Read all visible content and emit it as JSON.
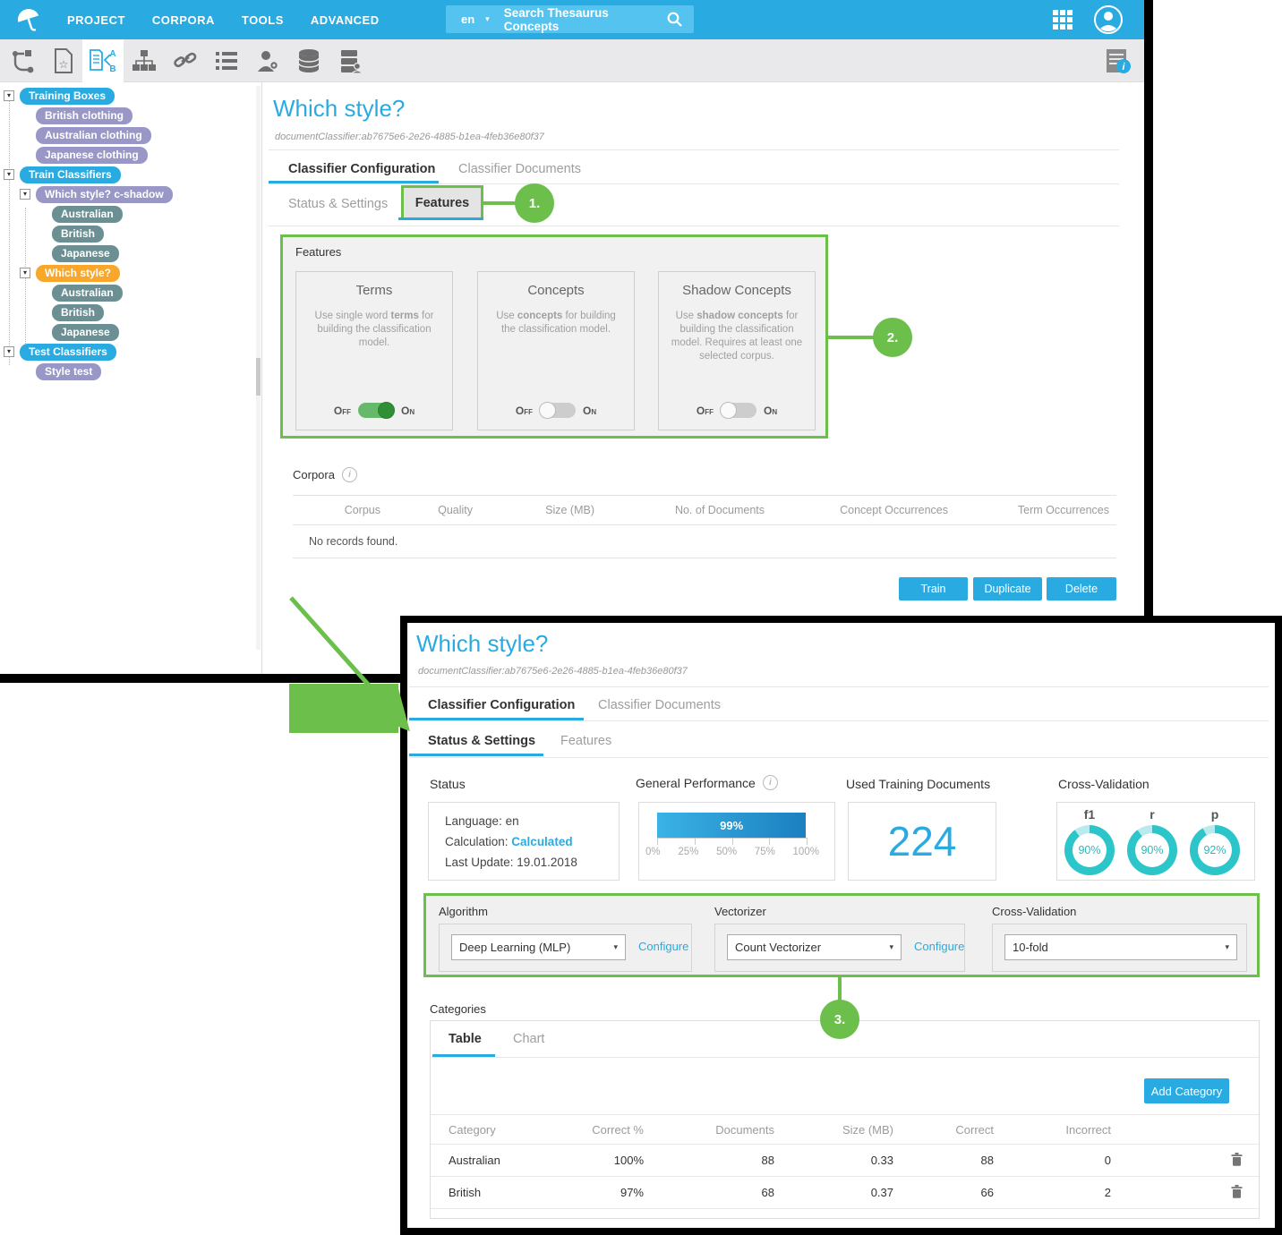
{
  "header": {
    "menus": [
      "PROJECT",
      "CORPORA",
      "TOOLS",
      "ADVANCED"
    ],
    "search": {
      "lang": "en",
      "placeholder": "Search Thesaurus Concepts"
    }
  },
  "tree": {
    "items": [
      {
        "label": "Training Boxes"
      },
      {
        "label": "British clothing"
      },
      {
        "label": "Australian clothing"
      },
      {
        "label": "Japanese clothing"
      },
      {
        "label": "Train Classifiers"
      },
      {
        "label": "Which style? c-shadow"
      },
      {
        "label": "Australian"
      },
      {
        "label": "British"
      },
      {
        "label": "Japanese"
      },
      {
        "label": "Which style?"
      },
      {
        "label": "Australian"
      },
      {
        "label": "British"
      },
      {
        "label": "Japanese"
      },
      {
        "label": "Test Classifiers"
      },
      {
        "label": "Style test"
      }
    ]
  },
  "classifier": {
    "title": "Which style?",
    "id": "documentClassifier:ab7675e6-2e26-4885-b1ea-4feb36e80f37",
    "tab_configuration": "Classifier Configuration",
    "tab_documents": "Classifier Documents",
    "subtab_status": "Status & Settings",
    "subtab_features": "Features"
  },
  "features": {
    "section_label": "Features",
    "off_label": "Off",
    "on_label": "On",
    "cards": [
      {
        "title": "Terms",
        "desc_pre": "Use single word ",
        "desc_bold": "terms",
        "desc_post": " for building the classification model.",
        "state": "on"
      },
      {
        "title": "Concepts",
        "desc_pre": "Use ",
        "desc_bold": "concepts",
        "desc_post": " for building the classification model.",
        "state": "off"
      },
      {
        "title": "Shadow Concepts",
        "desc_pre": "Use ",
        "desc_bold": "shadow concepts",
        "desc_post": " for building the classification model. Requires at least one selected corpus.",
        "state": "off"
      }
    ]
  },
  "corpora": {
    "label": "Corpora",
    "columns": [
      "Corpus",
      "Quality",
      "Size (MB)",
      "No. of Documents",
      "Concept Occurrences",
      "Term Occurrences"
    ],
    "empty_message": "No records found."
  },
  "actions": {
    "train": "Train",
    "duplicate": "Duplicate",
    "delete": "Delete"
  },
  "status_panel": {
    "label": "Status",
    "language": "Language: en",
    "calculation_label": "Calculation: ",
    "calculation_value": "Calculated",
    "last_update": "Last Update: 19.01.2018"
  },
  "performance": {
    "label": "General Performance",
    "value": "99%",
    "pct": 99,
    "ticks": [
      "0%",
      "25%",
      "50%",
      "75%",
      "100%"
    ]
  },
  "training_documents": {
    "label": "Used Training Documents",
    "value": "224"
  },
  "cross_validation": {
    "label": "Cross-Validation",
    "donuts": [
      {
        "name": "f1",
        "value": "90%",
        "pct": 90
      },
      {
        "name": "r",
        "value": "90%",
        "pct": 90
      },
      {
        "name": "p",
        "value": "92%",
        "pct": 92
      }
    ]
  },
  "settings": {
    "algorithm_label": "Algorithm",
    "algorithm_value": "Deep Learning (MLP)",
    "algorithm_configure": "Configure",
    "vectorizer_label": "Vectorizer",
    "vectorizer_value": "Count Vectorizer",
    "vectorizer_configure": "Configure",
    "cv_label": "Cross-Validation",
    "cv_value": "10-fold"
  },
  "categories": {
    "label": "Categories",
    "tab_table": "Table",
    "tab_chart": "Chart",
    "add_button": "Add Category",
    "columns": [
      "Category",
      "Correct %",
      "Documents",
      "Size (MB)",
      "Correct",
      "Incorrect"
    ],
    "rows": [
      [
        "Australian",
        "100%",
        "88",
        "0.33",
        "88",
        "0"
      ],
      [
        "British",
        "97%",
        "68",
        "0.37",
        "66",
        "2"
      ]
    ]
  },
  "annotations": {
    "step1": "1.",
    "step2": "2.",
    "step3": "3."
  },
  "colors": {
    "accent": "#29abe2",
    "annotation_green": "#6cbf4b",
    "donut_teal": "#2cc5c9"
  },
  "chart_data": [
    {
      "type": "bar",
      "title": "General Performance",
      "categories": [
        "performance"
      ],
      "values": [
        99
      ],
      "unit": "%",
      "xlim": [
        0,
        100
      ],
      "ticks": [
        0,
        25,
        50,
        75,
        100
      ]
    },
    {
      "type": "pie",
      "title": "Cross-Validation",
      "categories": [
        "f1",
        "r",
        "p"
      ],
      "values": [
        90,
        90,
        92
      ],
      "unit": "%"
    }
  ]
}
